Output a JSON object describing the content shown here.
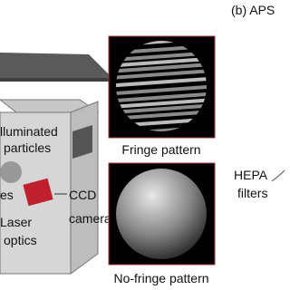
{
  "panel_label": "(b) APS",
  "box_labels": {
    "illuminated": [
      "lluminated",
      "particles"
    ],
    "lenses": "es",
    "laser": [
      "Laser",
      "optics"
    ],
    "camera": [
      "CCD",
      "camera"
    ]
  },
  "images": {
    "fringe": "Fringe pattern",
    "no_fringe": "No-fringe pattern"
  },
  "filters": [
    "HEPA",
    "filters"
  ]
}
